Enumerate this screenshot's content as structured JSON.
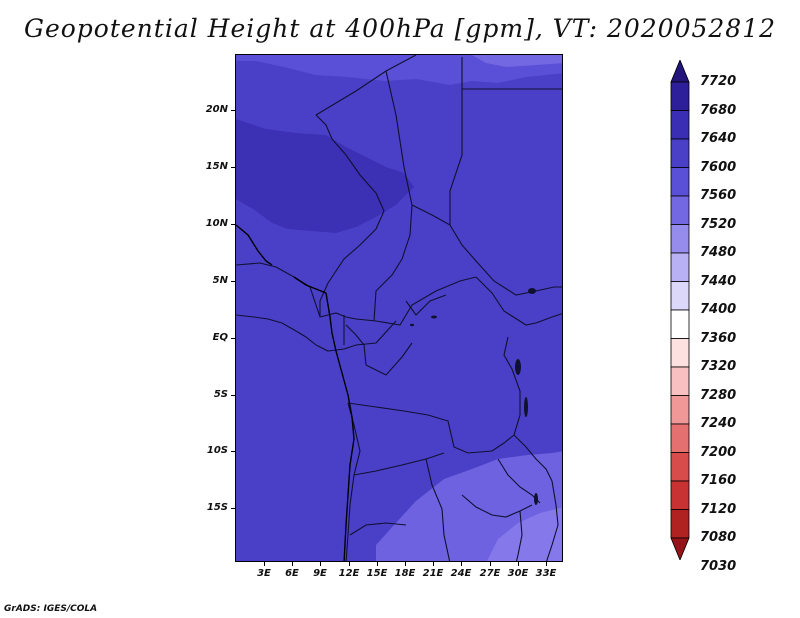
{
  "title": "Geopotential Height at 400hPa [gpm], VT: 2020052812",
  "footer": "GrADS: IGES/COLA",
  "map": {
    "lat_labels": [
      "20N",
      "15N",
      "10N",
      "5N",
      "EQ",
      "5S",
      "10S",
      "15S"
    ],
    "lon_labels": [
      "3E",
      "6E",
      "9E",
      "12E",
      "15E",
      "18E",
      "21E",
      "24E",
      "27E",
      "30E",
      "33E"
    ],
    "background_fill": "#4a40c8",
    "region_colors": {
      "ridge_high": "#3c30b4",
      "north_low": "#5a50d8",
      "south_low": "#6e62e0",
      "south_lower": "#8478ea"
    }
  },
  "colorbar": {
    "levels": [
      "7720",
      "7680",
      "7640",
      "7600",
      "7560",
      "7520",
      "7480",
      "7440",
      "7400",
      "7360",
      "7320",
      "7280",
      "7240",
      "7200",
      "7160",
      "7120",
      "7080",
      "7030"
    ],
    "colors": [
      "#22147a",
      "#2d1f99",
      "#3a2eb4",
      "#4a40c8",
      "#5a50d8",
      "#7468e2",
      "#958cec",
      "#b8b2f4",
      "#dcd8fa",
      "#ffffff",
      "#fde0e0",
      "#f8c0c0",
      "#f09898",
      "#e47070",
      "#d84c4c",
      "#c83232",
      "#b02222",
      "#94141a"
    ]
  }
}
